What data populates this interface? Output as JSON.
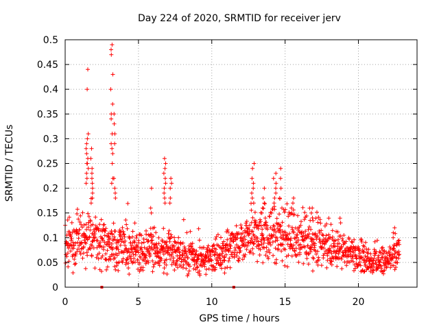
{
  "chart_data": {
    "type": "scatter",
    "title": "Day 224 of 2020, SRMTID for receiver jerv",
    "xlabel": "GPS time / hours",
    "ylabel": "SRMTID / TECUs",
    "xlim": [
      0,
      24
    ],
    "ylim": [
      0,
      0.5
    ],
    "xticks": [
      0,
      5,
      10,
      15,
      20
    ],
    "xtick_labels": [
      "0",
      "5",
      "10",
      "15",
      "20"
    ],
    "yticks": [
      0,
      0.05,
      0.1,
      0.15,
      0.2,
      0.25,
      0.3,
      0.35,
      0.4,
      0.45,
      0.5
    ],
    "ytick_labels": [
      "0",
      "0.05",
      "0.1",
      "0.15",
      "0.2",
      "0.25",
      "0.3",
      "0.35",
      "0.4",
      "0.45",
      "0.5"
    ],
    "grid": true,
    "marker": "plus",
    "series_color": "#ff0000",
    "data_hour_range": [
      0,
      22.8
    ],
    "baseline_profile": [
      [
        0,
        0.09
      ],
      [
        1.5,
        0.1
      ],
      [
        3,
        0.09
      ],
      [
        4,
        0.08
      ],
      [
        5,
        0.07
      ],
      [
        6,
        0.08
      ],
      [
        7,
        0.07
      ],
      [
        8,
        0.06
      ],
      [
        9,
        0.055
      ],
      [
        10,
        0.065
      ],
      [
        11,
        0.07
      ],
      [
        12,
        0.085
      ],
      [
        13,
        0.11
      ],
      [
        14,
        0.11
      ],
      [
        15,
        0.1
      ],
      [
        16,
        0.1
      ],
      [
        17,
        0.09
      ],
      [
        18,
        0.085
      ],
      [
        19,
        0.07
      ],
      [
        20,
        0.06
      ],
      [
        21,
        0.05
      ],
      [
        22,
        0.06
      ],
      [
        22.8,
        0.07
      ]
    ],
    "spread_profile": [
      [
        0,
        0.035
      ],
      [
        3,
        0.035
      ],
      [
        8,
        0.025
      ],
      [
        10,
        0.02
      ],
      [
        12,
        0.035
      ],
      [
        14,
        0.04
      ],
      [
        17,
        0.035
      ],
      [
        20,
        0.02
      ],
      [
        22.8,
        0.02
      ]
    ],
    "peaks": [
      {
        "x": 1.5,
        "y": [
          0.44,
          0.4,
          0.31,
          0.3,
          0.29,
          0.28,
          0.27,
          0.26,
          0.25,
          0.25,
          0.24,
          0.23,
          0.22,
          0.21
        ]
      },
      {
        "x": 1.8,
        "y": [
          0.28,
          0.26,
          0.24,
          0.23,
          0.22,
          0.21,
          0.2,
          0.19,
          0.18,
          0.17
        ]
      },
      {
        "x": 3.2,
        "y": [
          0.49,
          0.48,
          0.47,
          0.43,
          0.4,
          0.37,
          0.35,
          0.34,
          0.31,
          0.29,
          0.28,
          0.27,
          0.25,
          0.22,
          0.21
        ]
      },
      {
        "x": 3.4,
        "y": [
          0.35,
          0.33,
          0.31,
          0.29,
          0.22,
          0.2,
          0.19,
          0.18
        ]
      },
      {
        "x": 6.8,
        "y": [
          0.26,
          0.25,
          0.24,
          0.23,
          0.22,
          0.21,
          0.2,
          0.19,
          0.18,
          0.17
        ]
      },
      {
        "x": 7.2,
        "y": [
          0.22,
          0.21,
          0.2,
          0.18,
          0.17
        ]
      },
      {
        "x": 5.8,
        "y": [
          0.2,
          0.16,
          0.15
        ]
      },
      {
        "x": 12.8,
        "y": [
          0.25,
          0.24,
          0.22,
          0.21,
          0.2,
          0.19,
          0.18,
          0.17
        ]
      },
      {
        "x": 13.5,
        "y": [
          0.2,
          0.18,
          0.17,
          0.16,
          0.15
        ]
      },
      {
        "x": 14.3,
        "y": [
          0.23,
          0.22,
          0.21,
          0.2,
          0.19,
          0.18,
          0.17
        ]
      },
      {
        "x": 14.7,
        "y": [
          0.24,
          0.22,
          0.2,
          0.18,
          0.16
        ]
      },
      {
        "x": 15.5,
        "y": [
          0.18,
          0.17,
          0.16,
          0.15
        ]
      },
      {
        "x": 16.8,
        "y": [
          0.16,
          0.15,
          0.14
        ]
      },
      {
        "x": 22.4,
        "y": [
          0.12,
          0.11,
          0.1
        ]
      }
    ],
    "zero_points": [
      {
        "x": 2.5,
        "y": 0
      },
      {
        "x": 11.5,
        "y": 0
      }
    ]
  }
}
